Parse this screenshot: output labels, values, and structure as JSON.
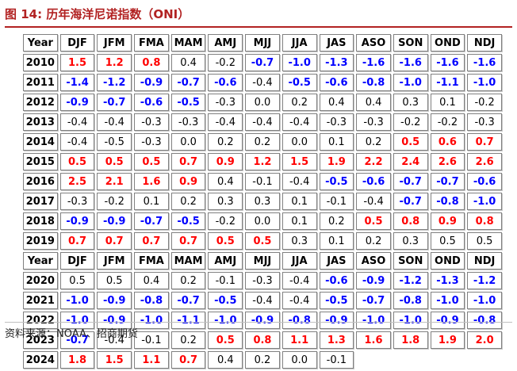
{
  "title": "图 14:  历年海洋尼诺指数（ONI）",
  "source": "资料来源：NOAA、招商期货",
  "colors": {
    "positive_anomaly": "#ff0000",
    "negative_anomaly": "#0000ff",
    "neutral": "#000000",
    "title": "#b22222"
  },
  "header": [
    "Year",
    "DJF",
    "JFM",
    "FMA",
    "MAM",
    "AMJ",
    "MJJ",
    "JJA",
    "JAS",
    "ASO",
    "SON",
    "OND",
    "NDJ"
  ],
  "rows": [
    {
      "type": "data",
      "cells": [
        [
          "2010",
          "y"
        ],
        [
          "1.5",
          "r"
        ],
        [
          "1.2",
          "r"
        ],
        [
          "0.8",
          "r"
        ],
        [
          "0.4",
          "n"
        ],
        [
          "-0.2",
          "n"
        ],
        [
          "-0.7",
          "b"
        ],
        [
          "-1.0",
          "b"
        ],
        [
          "-1.3",
          "b"
        ],
        [
          "-1.6",
          "b"
        ],
        [
          "-1.6",
          "b"
        ],
        [
          "-1.6",
          "b"
        ],
        [
          "-1.6",
          "b"
        ]
      ]
    },
    {
      "type": "data",
      "cells": [
        [
          "2011",
          "y"
        ],
        [
          "-1.4",
          "b"
        ],
        [
          "-1.2",
          "b"
        ],
        [
          "-0.9",
          "b"
        ],
        [
          "-0.7",
          "b"
        ],
        [
          "-0.6",
          "b"
        ],
        [
          "-0.4",
          "n"
        ],
        [
          "-0.5",
          "b"
        ],
        [
          "-0.6",
          "b"
        ],
        [
          "-0.8",
          "b"
        ],
        [
          "-1.0",
          "b"
        ],
        [
          "-1.1",
          "b"
        ],
        [
          "-1.0",
          "b"
        ]
      ]
    },
    {
      "type": "data",
      "cells": [
        [
          "2012",
          "y"
        ],
        [
          "-0.9",
          "b"
        ],
        [
          "-0.7",
          "b"
        ],
        [
          "-0.6",
          "b"
        ],
        [
          "-0.5",
          "b"
        ],
        [
          "-0.3",
          "n"
        ],
        [
          "0.0",
          "n"
        ],
        [
          "0.2",
          "n"
        ],
        [
          "0.4",
          "n"
        ],
        [
          "0.4",
          "n"
        ],
        [
          "0.3",
          "n"
        ],
        [
          "0.1",
          "n"
        ],
        [
          "-0.2",
          "n"
        ]
      ]
    },
    {
      "type": "data",
      "cells": [
        [
          "2013",
          "y"
        ],
        [
          "-0.4",
          "n"
        ],
        [
          "-0.4",
          "n"
        ],
        [
          "-0.3",
          "n"
        ],
        [
          "-0.3",
          "n"
        ],
        [
          "-0.4",
          "n"
        ],
        [
          "-0.4",
          "n"
        ],
        [
          "-0.4",
          "n"
        ],
        [
          "-0.3",
          "n"
        ],
        [
          "-0.3",
          "n"
        ],
        [
          "-0.2",
          "n"
        ],
        [
          "-0.2",
          "n"
        ],
        [
          "-0.3",
          "n"
        ]
      ]
    },
    {
      "type": "data",
      "cells": [
        [
          "2014",
          "y"
        ],
        [
          "-0.4",
          "n"
        ],
        [
          "-0.5",
          "n"
        ],
        [
          "-0.3",
          "n"
        ],
        [
          "0.0",
          "n"
        ],
        [
          "0.2",
          "n"
        ],
        [
          "0.2",
          "n"
        ],
        [
          "0.0",
          "n"
        ],
        [
          "0.1",
          "n"
        ],
        [
          "0.2",
          "n"
        ],
        [
          "0.5",
          "r"
        ],
        [
          "0.6",
          "r"
        ],
        [
          "0.7",
          "r"
        ]
      ]
    },
    {
      "type": "data",
      "cells": [
        [
          "2015",
          "y"
        ],
        [
          "0.5",
          "r"
        ],
        [
          "0.5",
          "r"
        ],
        [
          "0.5",
          "r"
        ],
        [
          "0.7",
          "r"
        ],
        [
          "0.9",
          "r"
        ],
        [
          "1.2",
          "r"
        ],
        [
          "1.5",
          "r"
        ],
        [
          "1.9",
          "r"
        ],
        [
          "2.2",
          "r"
        ],
        [
          "2.4",
          "r"
        ],
        [
          "2.6",
          "r"
        ],
        [
          "2.6",
          "r"
        ]
      ]
    },
    {
      "type": "data",
      "cells": [
        [
          "2016",
          "y"
        ],
        [
          "2.5",
          "r"
        ],
        [
          "2.1",
          "r"
        ],
        [
          "1.6",
          "r"
        ],
        [
          "0.9",
          "r"
        ],
        [
          "0.4",
          "n"
        ],
        [
          "-0.1",
          "n"
        ],
        [
          "-0.4",
          "n"
        ],
        [
          "-0.5",
          "b"
        ],
        [
          "-0.6",
          "b"
        ],
        [
          "-0.7",
          "b"
        ],
        [
          "-0.7",
          "b"
        ],
        [
          "-0.6",
          "b"
        ]
      ]
    },
    {
      "type": "data",
      "cells": [
        [
          "2017",
          "y"
        ],
        [
          "-0.3",
          "n"
        ],
        [
          "-0.2",
          "n"
        ],
        [
          "0.1",
          "n"
        ],
        [
          "0.2",
          "n"
        ],
        [
          "0.3",
          "n"
        ],
        [
          "0.3",
          "n"
        ],
        [
          "0.1",
          "n"
        ],
        [
          "-0.1",
          "n"
        ],
        [
          "-0.4",
          "n"
        ],
        [
          "-0.7",
          "b"
        ],
        [
          "-0.8",
          "b"
        ],
        [
          "-1.0",
          "b"
        ]
      ]
    },
    {
      "type": "data",
      "cells": [
        [
          "2018",
          "y"
        ],
        [
          "-0.9",
          "b"
        ],
        [
          "-0.9",
          "b"
        ],
        [
          "-0.7",
          "b"
        ],
        [
          "-0.5",
          "b"
        ],
        [
          "-0.2",
          "n"
        ],
        [
          "0.0",
          "n"
        ],
        [
          "0.1",
          "n"
        ],
        [
          "0.2",
          "n"
        ],
        [
          "0.5",
          "r"
        ],
        [
          "0.8",
          "r"
        ],
        [
          "0.9",
          "r"
        ],
        [
          "0.8",
          "r"
        ]
      ]
    },
    {
      "type": "data",
      "cells": [
        [
          "2019",
          "y"
        ],
        [
          "0.7",
          "r"
        ],
        [
          "0.7",
          "r"
        ],
        [
          "0.7",
          "r"
        ],
        [
          "0.7",
          "r"
        ],
        [
          "0.5",
          "r"
        ],
        [
          "0.5",
          "r"
        ],
        [
          "0.3",
          "n"
        ],
        [
          "0.1",
          "n"
        ],
        [
          "0.2",
          "n"
        ],
        [
          "0.3",
          "n"
        ],
        [
          "0.5",
          "n"
        ],
        [
          "0.5",
          "n"
        ]
      ]
    },
    {
      "type": "header"
    },
    {
      "type": "data",
      "cells": [
        [
          "2020",
          "y"
        ],
        [
          "0.5",
          "n"
        ],
        [
          "0.5",
          "n"
        ],
        [
          "0.4",
          "n"
        ],
        [
          "0.2",
          "n"
        ],
        [
          "-0.1",
          "n"
        ],
        [
          "-0.3",
          "n"
        ],
        [
          "-0.4",
          "n"
        ],
        [
          "-0.6",
          "b"
        ],
        [
          "-0.9",
          "b"
        ],
        [
          "-1.2",
          "b"
        ],
        [
          "-1.3",
          "b"
        ],
        [
          "-1.2",
          "b"
        ]
      ]
    },
    {
      "type": "data",
      "cells": [
        [
          "2021",
          "y"
        ],
        [
          "-1.0",
          "b"
        ],
        [
          "-0.9",
          "b"
        ],
        [
          "-0.8",
          "b"
        ],
        [
          "-0.7",
          "b"
        ],
        [
          "-0.5",
          "b"
        ],
        [
          "-0.4",
          "n"
        ],
        [
          "-0.4",
          "n"
        ],
        [
          "-0.5",
          "b"
        ],
        [
          "-0.7",
          "b"
        ],
        [
          "-0.8",
          "b"
        ],
        [
          "-1.0",
          "b"
        ],
        [
          "-1.0",
          "b"
        ]
      ]
    },
    {
      "type": "data",
      "cells": [
        [
          "2022",
          "y"
        ],
        [
          "-1.0",
          "b"
        ],
        [
          "-0.9",
          "b"
        ],
        [
          "-1.0",
          "b"
        ],
        [
          "-1.1",
          "b"
        ],
        [
          "-1.0",
          "b"
        ],
        [
          "-0.9",
          "b"
        ],
        [
          "-0.8",
          "b"
        ],
        [
          "-0.9",
          "b"
        ],
        [
          "-1.0",
          "b"
        ],
        [
          "-1.0",
          "b"
        ],
        [
          "-0.9",
          "b"
        ],
        [
          "-0.8",
          "b"
        ]
      ]
    },
    {
      "type": "data",
      "cells": [
        [
          "2023",
          "y"
        ],
        [
          "-0.7",
          "b"
        ],
        [
          "-0.4",
          "n"
        ],
        [
          "-0.1",
          "n"
        ],
        [
          "0.2",
          "n"
        ],
        [
          "0.5",
          "r"
        ],
        [
          "0.8",
          "r"
        ],
        [
          "1.1",
          "r"
        ],
        [
          "1.3",
          "r"
        ],
        [
          "1.6",
          "r"
        ],
        [
          "1.8",
          "r"
        ],
        [
          "1.9",
          "r"
        ],
        [
          "2.0",
          "r"
        ]
      ]
    },
    {
      "type": "data",
      "cells": [
        [
          "2024",
          "y"
        ],
        [
          "1.8",
          "r"
        ],
        [
          "1.5",
          "r"
        ],
        [
          "1.1",
          "r"
        ],
        [
          "0.7",
          "r"
        ],
        [
          "0.4",
          "n"
        ],
        [
          "0.2",
          "n"
        ],
        [
          "0.0",
          "n"
        ],
        [
          "-0.1",
          "n"
        ]
      ]
    }
  ]
}
